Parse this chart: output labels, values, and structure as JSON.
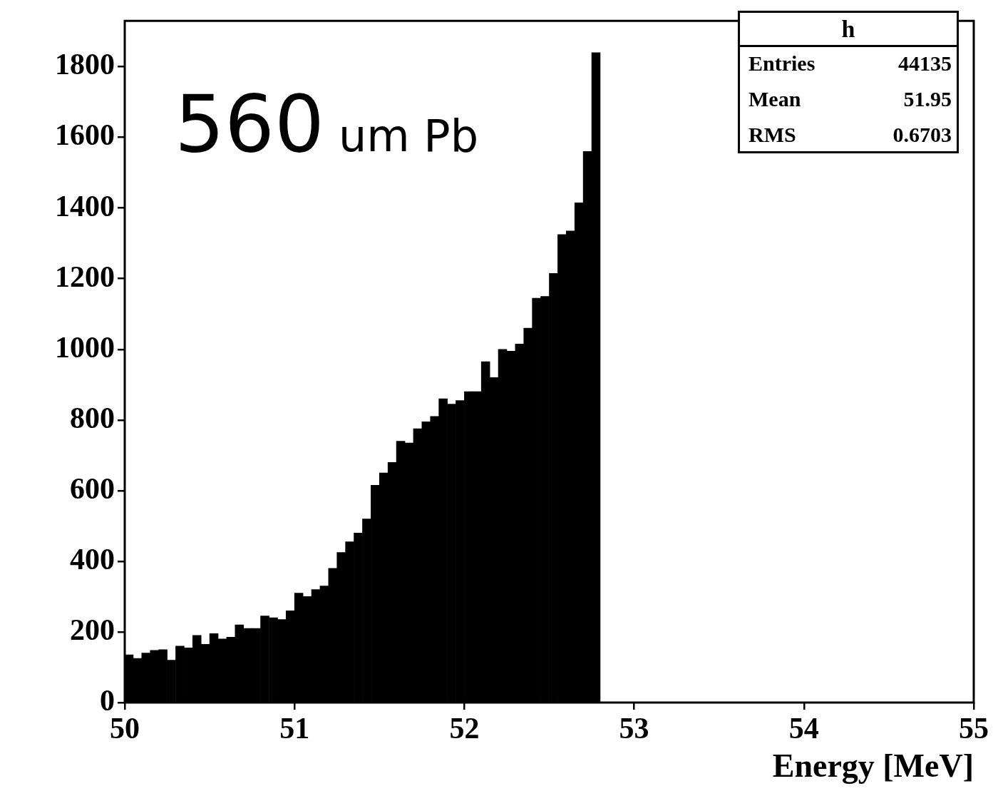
{
  "chart_data": {
    "type": "histogram",
    "xlabel": "Energy [MeV]",
    "bins": [
      50,
      50.05,
      50.1,
      50.15,
      50.2,
      50.25,
      50.3,
      50.35,
      50.4,
      50.45,
      50.5,
      50.55,
      50.6,
      50.65,
      50.7,
      50.75,
      50.8,
      50.85,
      50.9,
      50.95,
      51,
      51.05,
      51.1,
      51.15,
      51.2,
      51.25,
      51.3,
      51.35,
      51.4,
      51.45,
      51.5,
      51.55,
      51.6,
      51.65,
      51.7,
      51.75,
      51.8,
      51.85,
      51.9,
      51.95,
      52,
      52.05,
      52.1,
      52.15,
      52.2,
      52.25,
      52.3,
      52.35,
      52.4,
      52.45,
      52.5,
      52.55,
      52.6,
      52.65,
      52.7,
      52.75,
      52.8
    ],
    "values": [
      135,
      125,
      140,
      148,
      150,
      120,
      160,
      155,
      190,
      165,
      195,
      180,
      185,
      220,
      210,
      210,
      245,
      240,
      235,
      260,
      310,
      300,
      320,
      330,
      380,
      425,
      455,
      480,
      520,
      615,
      650,
      680,
      740,
      735,
      775,
      795,
      810,
      860,
      845,
      855,
      880,
      880,
      965,
      920,
      1000,
      995,
      1015,
      1060,
      1145,
      1150,
      1215,
      1325,
      1335,
      1415,
      1560,
      1840
    ],
    "color": "#000000",
    "xlim": [
      50,
      55
    ],
    "xticks": [
      50,
      51,
      52,
      53,
      54,
      55
    ],
    "ylim": [
      0,
      1930
    ],
    "yticks": [
      0,
      200,
      400,
      600,
      800,
      1000,
      1200,
      1400,
      1600,
      1800
    ],
    "grid": false,
    "legend": false,
    "annotations": [
      "560",
      "um Pb",
      "h",
      "Entries",
      "44135",
      "Mean",
      "51.95",
      "RMS",
      "0.6703"
    ]
  }
}
